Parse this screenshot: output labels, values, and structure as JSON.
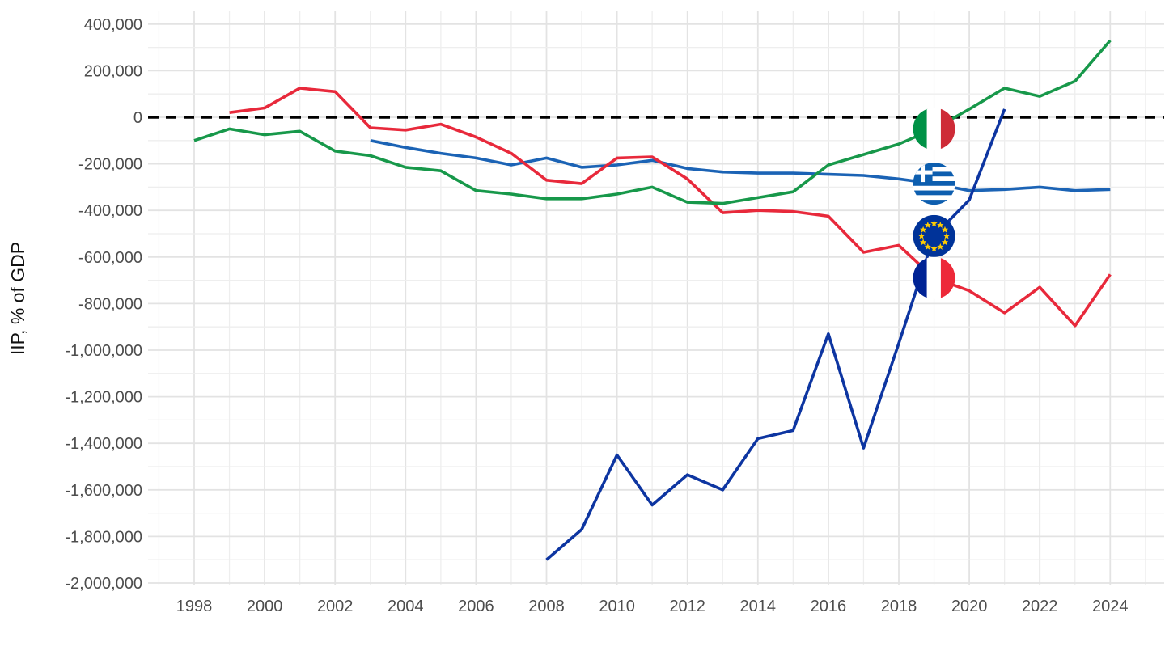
{
  "figure": {
    "background_color": "#ffffff",
    "description": "Line chart of international investment position by country, flags mark each series at 2019"
  },
  "chart_data": {
    "type": "line",
    "title": "",
    "xlabel": "",
    "ylabel": "IIP, % of GDP",
    "x_tick_labels": [
      "1998",
      "2000",
      "2002",
      "2004",
      "2006",
      "2008",
      "2010",
      "2012",
      "2014",
      "2016",
      "2018",
      "2020",
      "2022",
      "2024"
    ],
    "y_tick_labels": [
      "400,000",
      "200,000",
      "0",
      "-200,000",
      "-400,000",
      "-600,000",
      "-800,000",
      "-1,000,000",
      "-1,200,000",
      "-1,400,000",
      "-1,600,000",
      "-1,800,000",
      "-2,000,000"
    ],
    "xlim": [
      1996.7,
      2025.5
    ],
    "ylim": [
      -2020000,
      450000
    ],
    "grid": "on",
    "legend_position": "none",
    "zero_reference_line": {
      "value": 0,
      "style": "dashed",
      "color": "#000000"
    },
    "flag_marker_year": 2019,
    "series": [
      {
        "name": "Italy",
        "flag_icon": "italy-flag-icon",
        "color": "#17984a",
        "years": [
          1998,
          1999,
          2000,
          2001,
          2002,
          2003,
          2004,
          2005,
          2006,
          2007,
          2008,
          2009,
          2010,
          2011,
          2012,
          2013,
          2014,
          2015,
          2016,
          2017,
          2018,
          2019,
          2020,
          2021,
          2022,
          2023,
          2024
        ],
        "values": [
          -100000,
          -50000,
          -75000,
          -60000,
          -145000,
          -165000,
          -215000,
          -230000,
          -315000,
          -330000,
          -350000,
          -350000,
          -330000,
          -300000,
          -365000,
          -370000,
          -345000,
          -320000,
          -205000,
          -160000,
          -115000,
          -50000,
          35000,
          125000,
          90000,
          155000,
          330000
        ]
      },
      {
        "name": "Greece",
        "flag_icon": "greece-flag-icon",
        "color": "#1b63b5",
        "years": [
          2003,
          2004,
          2005,
          2006,
          2007,
          2008,
          2009,
          2010,
          2011,
          2012,
          2013,
          2014,
          2015,
          2016,
          2017,
          2018,
          2019,
          2020,
          2021,
          2022,
          2023,
          2024
        ],
        "values": [
          -100000,
          -130000,
          -155000,
          -175000,
          -205000,
          -175000,
          -215000,
          -205000,
          -185000,
          -220000,
          -235000,
          -240000,
          -240000,
          -245000,
          -250000,
          -265000,
          -285000,
          -315000,
          -310000,
          -300000,
          -315000,
          -310000
        ]
      },
      {
        "name": "France",
        "flag_icon": "france-flag-icon",
        "color": "#e8293b",
        "years": [
          1999,
          2000,
          2001,
          2002,
          2003,
          2004,
          2005,
          2006,
          2007,
          2008,
          2009,
          2010,
          2011,
          2012,
          2013,
          2014,
          2015,
          2016,
          2017,
          2018,
          2019,
          2020,
          2021,
          2022,
          2023,
          2024
        ],
        "values": [
          20000,
          40000,
          125000,
          110000,
          -45000,
          -55000,
          -30000,
          -85000,
          -155000,
          -270000,
          -285000,
          -175000,
          -170000,
          -265000,
          -410000,
          -400000,
          -405000,
          -425000,
          -580000,
          -550000,
          -690000,
          -745000,
          -840000,
          -730000,
          -895000,
          -675000
        ]
      },
      {
        "name": "European Union",
        "flag_icon": "eu-flag-icon",
        "color": "#0d35a1",
        "years": [
          2008,
          2009,
          2010,
          2011,
          2012,
          2013,
          2014,
          2015,
          2016,
          2017,
          2018,
          2019,
          2020,
          2021
        ],
        "values": [
          -1900000,
          -1770000,
          -1450000,
          -1665000,
          -1535000,
          -1600000,
          -1380000,
          -1345000,
          -930000,
          -1420000,
          -970000,
          -510000,
          -355000,
          35000
        ]
      }
    ]
  },
  "style": {
    "tick_label_color": "#4d4d4d",
    "axis_title_color": "#111111",
    "grid_major_color": "#e3e3e3",
    "grid_minor_color": "#eeeeee",
    "flag_colors": {
      "italy": [
        "#009246",
        "#ffffff",
        "#ce2b37"
      ],
      "france": [
        "#002395",
        "#ffffff",
        "#ed2939"
      ],
      "greece": [
        "#0d5eaf",
        "#ffffff"
      ],
      "eu_field": "#003399",
      "eu_stars": "#ffcc00"
    }
  }
}
